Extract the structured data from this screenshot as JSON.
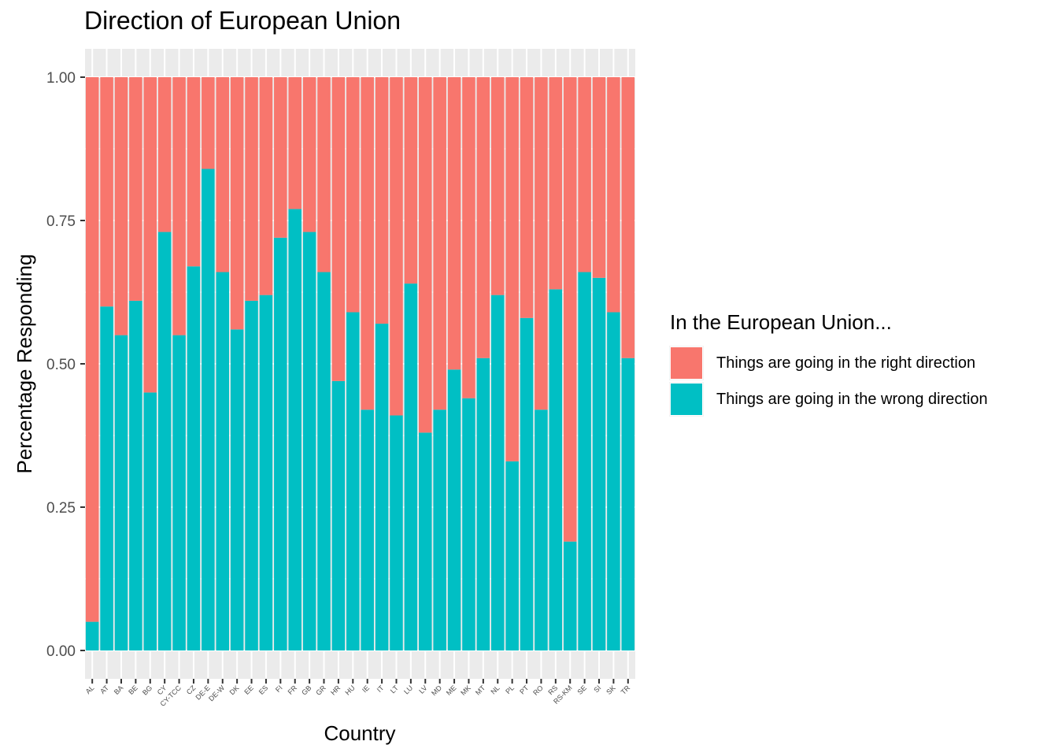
{
  "chart_data": {
    "type": "bar",
    "stacked": true,
    "title": "Direction of European Union",
    "xlabel": "Country",
    "ylabel": "Percentage Responding",
    "ylim": [
      0,
      1
    ],
    "yticks": [
      "0.00",
      "0.25",
      "0.50",
      "0.75",
      "1.00"
    ],
    "categories": [
      "AL",
      "AT",
      "BA",
      "BE",
      "BG",
      "CY",
      "CY-TCC",
      "CZ",
      "DE-E",
      "DE-W",
      "DK",
      "EE",
      "ES",
      "FI",
      "FR",
      "GB",
      "GR",
      "HR",
      "HU",
      "IE",
      "IT",
      "LT",
      "LU",
      "LV",
      "MD",
      "ME",
      "MK",
      "MT",
      "NL",
      "PL",
      "PT",
      "RO",
      "RS",
      "RS-KM",
      "SE",
      "SI",
      "SK",
      "TR"
    ],
    "legend_title": "In the European Union...",
    "legend_position": "right",
    "grid": true,
    "series": [
      {
        "name": "Things are going in the right direction",
        "color": "#F8766D",
        "values": [
          0.95,
          0.4,
          0.45,
          0.39,
          0.55,
          0.27,
          0.45,
          0.33,
          0.16,
          0.34,
          0.44,
          0.39,
          0.38,
          0.28,
          0.23,
          0.27,
          0.34,
          0.53,
          0.41,
          0.58,
          0.43,
          0.59,
          0.36,
          0.62,
          0.58,
          0.51,
          0.56,
          0.49,
          0.38,
          0.67,
          0.42,
          0.58,
          0.37,
          0.81,
          0.34,
          0.35,
          0.41,
          0.49
        ]
      },
      {
        "name": "Things are going in the wrong direction",
        "color": "#00BFC4",
        "values": [
          0.05,
          0.6,
          0.55,
          0.61,
          0.45,
          0.73,
          0.55,
          0.67,
          0.84,
          0.66,
          0.56,
          0.61,
          0.62,
          0.72,
          0.77,
          0.73,
          0.66,
          0.47,
          0.59,
          0.42,
          0.57,
          0.41,
          0.64,
          0.38,
          0.42,
          0.49,
          0.44,
          0.51,
          0.62,
          0.33,
          0.58,
          0.42,
          0.63,
          0.19,
          0.66,
          0.65,
          0.59,
          0.51
        ]
      }
    ],
    "panel_bg": "#EBEBEB"
  }
}
